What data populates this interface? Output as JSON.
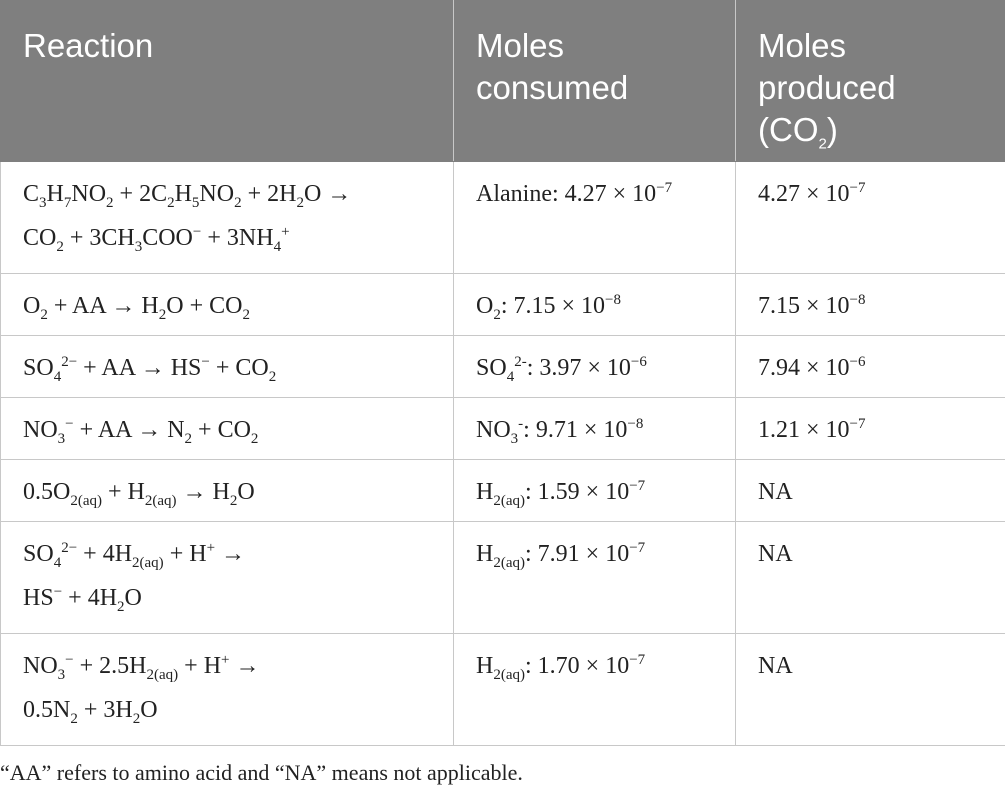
{
  "table": {
    "header": [
      [
        [
          "Reaction"
        ]
      ],
      [
        [
          "Moles"
        ],
        [
          "consumed"
        ]
      ],
      [
        [
          "Moles"
        ],
        [
          "produced"
        ],
        [
          "(CO",
          {
            "sub": "2"
          },
          ")"
        ]
      ]
    ],
    "rows": [
      [
        [
          [
            "C",
            {
              "sub": "3"
            },
            "H",
            {
              "sub": "7"
            },
            "NO",
            {
              "sub": "2"
            },
            " + 2C",
            {
              "sub": "2"
            },
            "H",
            {
              "sub": "5"
            },
            "NO",
            {
              "sub": "2"
            },
            " + 2H",
            {
              "sub": "2"
            },
            "O →"
          ],
          [
            "CO",
            {
              "sub": "2"
            },
            " + 3CH",
            {
              "sub": "3"
            },
            "COO",
            {
              "sup": "−"
            },
            " + 3NH",
            {
              "sub": "4"
            },
            {
              "sup": "+"
            }
          ]
        ],
        [
          [
            "Alanine: 4.27 × 10",
            {
              "sup": "−7"
            }
          ]
        ],
        [
          [
            "4.27 × 10",
            {
              "sup": "−7"
            }
          ]
        ]
      ],
      [
        [
          [
            "O",
            {
              "sub": "2"
            },
            " + AA → H",
            {
              "sub": "2"
            },
            "O + CO",
            {
              "sub": "2"
            }
          ]
        ],
        [
          [
            "O",
            {
              "sub": "2"
            },
            ": 7.15 × 10",
            {
              "sup": "−8"
            }
          ]
        ],
        [
          [
            "7.15 × 10",
            {
              "sup": "−8"
            }
          ]
        ]
      ],
      [
        [
          [
            "SO",
            {
              "sub": "4"
            },
            {
              "sup": "2−"
            },
            " + AA → HS",
            {
              "sup": "−"
            },
            " + CO",
            {
              "sub": "2"
            }
          ]
        ],
        [
          [
            "SO",
            {
              "sub": "4"
            },
            {
              "sup": "2-"
            },
            ": 3.97 × 10",
            {
              "sup": "−6"
            }
          ]
        ],
        [
          [
            "7.94 × 10",
            {
              "sup": "−6"
            }
          ]
        ]
      ],
      [
        [
          [
            "NO",
            {
              "sub": "3"
            },
            {
              "sup": "−"
            },
            " + AA → N",
            {
              "sub": "2"
            },
            " + CO",
            {
              "sub": "2"
            }
          ]
        ],
        [
          [
            "NO",
            {
              "sub": "3"
            },
            {
              "sup": "-"
            },
            ": 9.71 × 10",
            {
              "sup": "−8"
            }
          ]
        ],
        [
          [
            "1.21 × 10",
            {
              "sup": "−7"
            }
          ]
        ]
      ],
      [
        [
          [
            "0.5O",
            {
              "sub": "2(aq)"
            },
            " + H",
            {
              "sub": "2(aq)"
            },
            " → H",
            {
              "sub": "2"
            },
            "O"
          ]
        ],
        [
          [
            "H",
            {
              "sub": "2(aq)"
            },
            ": 1.59 × 10",
            {
              "sup": "−7"
            }
          ]
        ],
        [
          [
            "NA"
          ]
        ]
      ],
      [
        [
          [
            "SO",
            {
              "sub": "4"
            },
            {
              "sup": "2−"
            },
            " + 4H",
            {
              "sub": "2(aq)"
            },
            " + H",
            {
              "sup": "+"
            },
            " →"
          ],
          [
            "HS",
            {
              "sup": "−"
            },
            " + 4H",
            {
              "sub": "2"
            },
            "O"
          ]
        ],
        [
          [
            "H",
            {
              "sub": "2(aq)"
            },
            ": 7.91 × 10",
            {
              "sup": "−7"
            }
          ]
        ],
        [
          [
            "NA"
          ]
        ]
      ],
      [
        [
          [
            "NO",
            {
              "sub": "3"
            },
            {
              "sup": "−"
            },
            " + 2.5H",
            {
              "sub": "2(aq)"
            },
            " + H",
            {
              "sup": "+"
            },
            " →"
          ],
          [
            "0.5N",
            {
              "sub": "2"
            },
            " + 3H",
            {
              "sub": "2"
            },
            "O"
          ]
        ],
        [
          [
            "H",
            {
              "sub": "2(aq)"
            },
            ": 1.70 × 10",
            {
              "sup": "−7"
            }
          ]
        ],
        [
          [
            "NA"
          ]
        ]
      ]
    ],
    "footnote": "“AA” refers to amino acid and “NA” means not applicable."
  }
}
